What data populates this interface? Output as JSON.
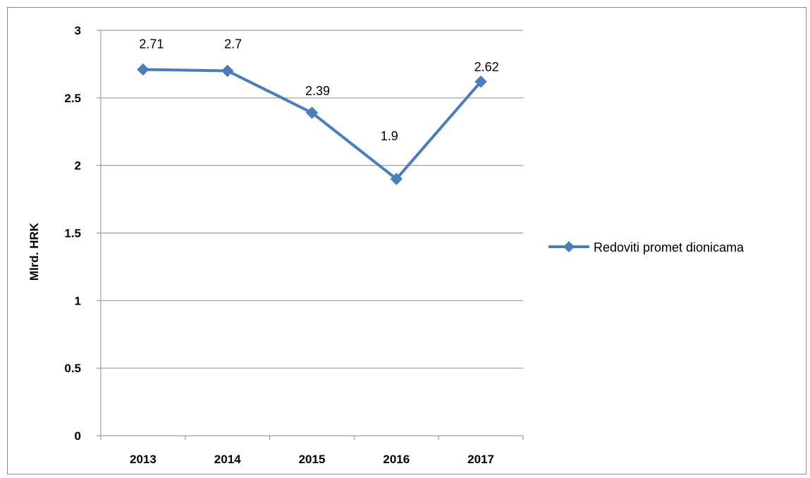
{
  "chart_data": {
    "type": "line",
    "title": "",
    "xlabel": "",
    "ylabel": "Mlrd. HRK",
    "categories": [
      "2013",
      "2014",
      "2015",
      "2016",
      "2017"
    ],
    "series": [
      {
        "name": "Redoviti promet dionicama",
        "values": [
          2.71,
          2.7,
          2.39,
          1.9,
          2.62
        ],
        "color": "#4a7ebb",
        "marker": "diamond"
      }
    ],
    "data_labels": [
      "2.71",
      "2.7",
      "2.39",
      "1.9",
      "2.62"
    ],
    "ylim": [
      0,
      3
    ],
    "yticks": [
      "0",
      "0.5",
      "1",
      "1.5",
      "2",
      "2.5",
      "3"
    ],
    "grid": true,
    "legend_position": "right"
  }
}
